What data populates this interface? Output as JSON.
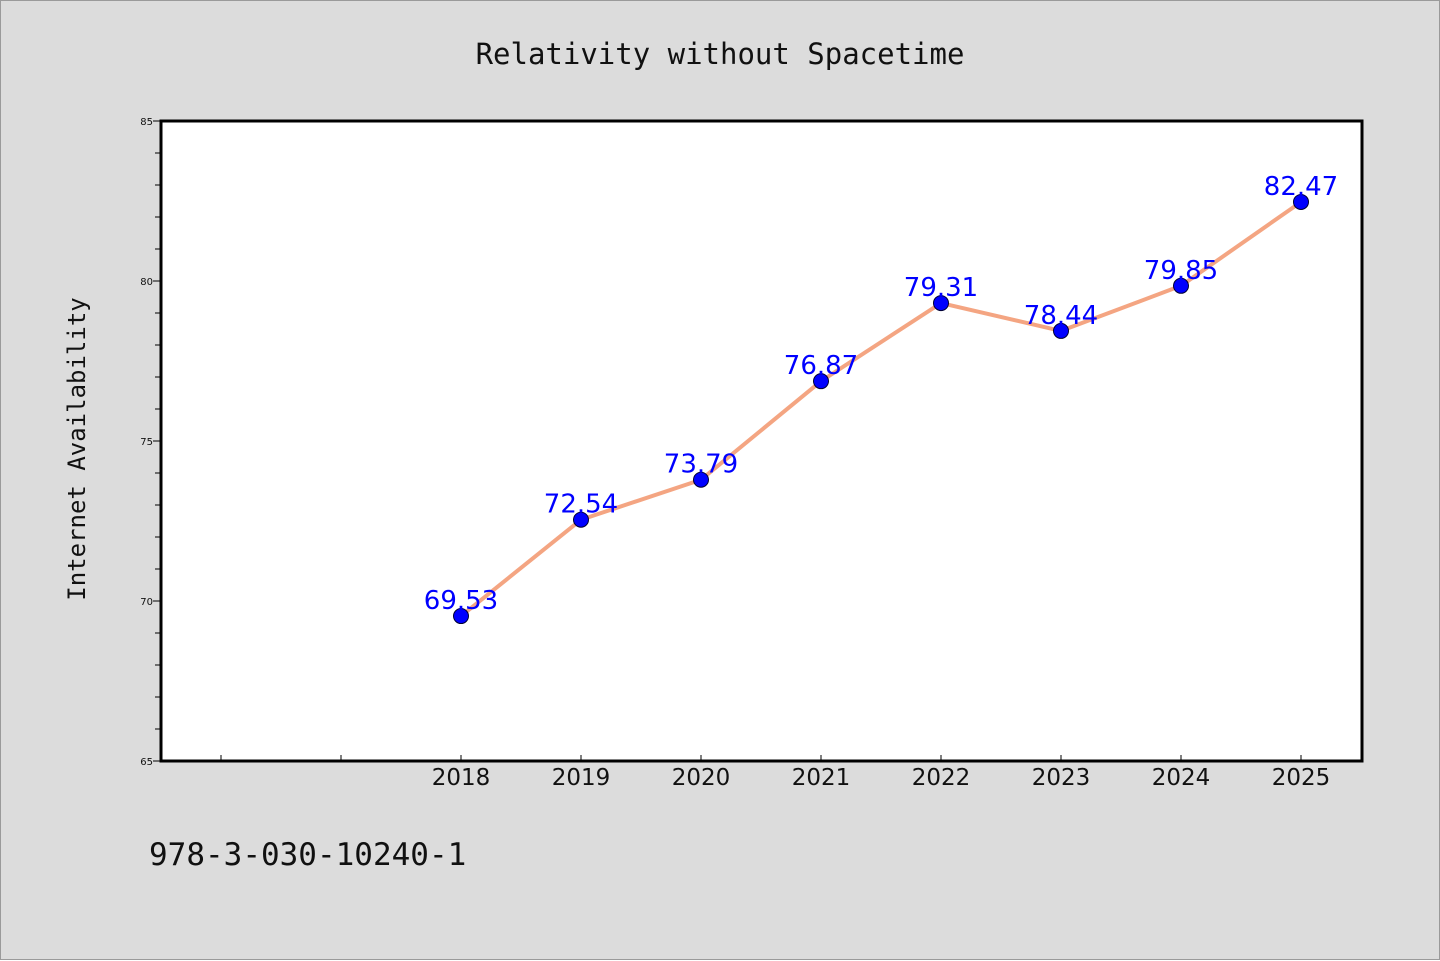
{
  "chart_data": {
    "type": "line",
    "title": "Relativity without Spacetime",
    "xlabel": "",
    "ylabel": "Internet Availability",
    "categories": [
      "2018",
      "2019",
      "2020",
      "2021",
      "2022",
      "2023",
      "2024",
      "2025"
    ],
    "series": [
      {
        "values": [
          69.53,
          72.54,
          73.79,
          76.87,
          79.31,
          78.44,
          79.85,
          82.47
        ]
      }
    ],
    "ylim": [
      65,
      85
    ],
    "yticks": [
      "65",
      "70",
      "75",
      "80",
      "85"
    ],
    "grid": false,
    "legend": "none"
  },
  "footer": {
    "isbn": "978-3-030-10240-1"
  },
  "colors": {
    "background": "#dcdcdc",
    "plot_area": "#ffffff",
    "line": "#f4a582",
    "marker": "#0000ff",
    "data_label": "#0000ff"
  }
}
